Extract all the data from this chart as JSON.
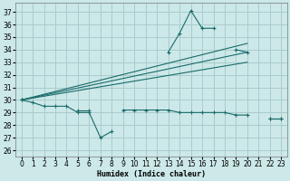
{
  "xlabel": "Humidex (Indice chaleur)",
  "bg_color": "#cce8e8",
  "grid_color": "#aacccc",
  "line_color": "#1a6b6b",
  "xlim": [
    -0.5,
    23.5
  ],
  "ylim": [
    25.5,
    37.7
  ],
  "yticks": [
    26,
    27,
    28,
    29,
    30,
    31,
    32,
    33,
    34,
    35,
    36,
    37
  ],
  "xticks": [
    0,
    1,
    2,
    3,
    4,
    5,
    6,
    7,
    8,
    9,
    10,
    11,
    12,
    13,
    14,
    15,
    16,
    17,
    18,
    19,
    20,
    21,
    22,
    23
  ],
  "series1_x": [
    0,
    1,
    2,
    3,
    4,
    5,
    6,
    7,
    8,
    9,
    10,
    11,
    12,
    13,
    14,
    15,
    16,
    17,
    18,
    19,
    20,
    21,
    22,
    23
  ],
  "series1_y": [
    30.0,
    29.8,
    29.5,
    29.5,
    29.5,
    29.0,
    29.0,
    27.0,
    27.5,
    null,
    null,
    null,
    null,
    33.8,
    35.3,
    37.1,
    35.7,
    35.7,
    null,
    34.0,
    33.8,
    null,
    28.5,
    28.5
  ],
  "series2_x": [
    0,
    1,
    2,
    3,
    4,
    5,
    6,
    7,
    8,
    9,
    10,
    11,
    12,
    13,
    14,
    15,
    16,
    17,
    18,
    19,
    20,
    21,
    22,
    23
  ],
  "series2_y": [
    30.0,
    null,
    null,
    null,
    null,
    29.2,
    29.2,
    null,
    null,
    29.2,
    29.2,
    29.2,
    29.2,
    29.2,
    29.0,
    29.0,
    29.0,
    29.0,
    29.0,
    28.8,
    28.8,
    null,
    28.5,
    28.5
  ],
  "line1_x": [
    0,
    20
  ],
  "line1_y": [
    30.0,
    34.5
  ],
  "line2_x": [
    0,
    20
  ],
  "line2_y": [
    30.0,
    33.8
  ],
  "line3_x": [
    0,
    20
  ],
  "line3_y": [
    30.0,
    33.0
  ]
}
